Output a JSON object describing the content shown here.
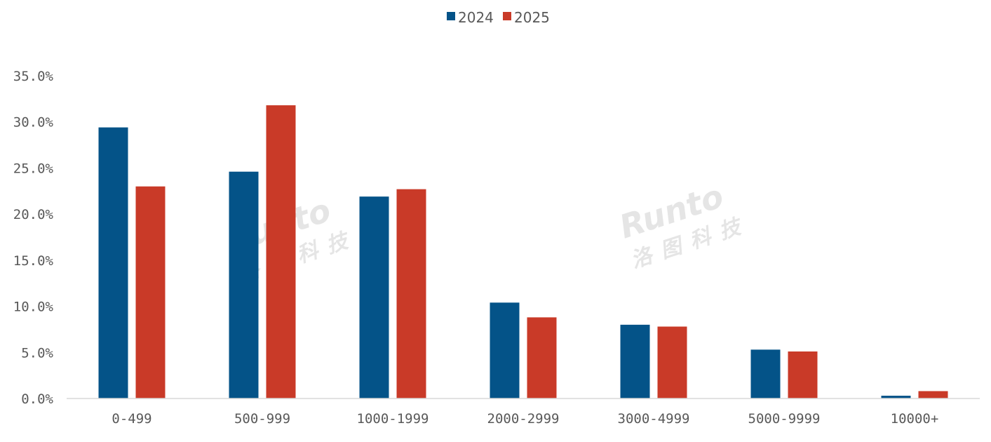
{
  "chart_data": {
    "type": "bar",
    "title": "",
    "xlabel": "",
    "ylabel": "",
    "categories": [
      "0-499",
      "500-999",
      "1000-1999",
      "2000-2999",
      "3000-4999",
      "5000-9999",
      "10000+"
    ],
    "series": [
      {
        "name": "2024",
        "color": "#045388",
        "values": [
          29.4,
          24.6,
          21.9,
          10.4,
          8.0,
          5.3,
          0.3
        ]
      },
      {
        "name": "2025",
        "color": "#C93A28",
        "values": [
          23.0,
          31.8,
          22.7,
          8.8,
          7.8,
          5.1,
          0.8
        ]
      }
    ],
    "ylim": [
      0,
      35
    ],
    "yticks": [
      "0.0%",
      "5.0%",
      "10.0%",
      "15.0%",
      "20.0%",
      "25.0%",
      "30.0%",
      "35.0%"
    ],
    "grid": false,
    "legend_position": "top-center"
  },
  "watermark": {
    "text": "Runto",
    "subtext": "洛图科技"
  }
}
